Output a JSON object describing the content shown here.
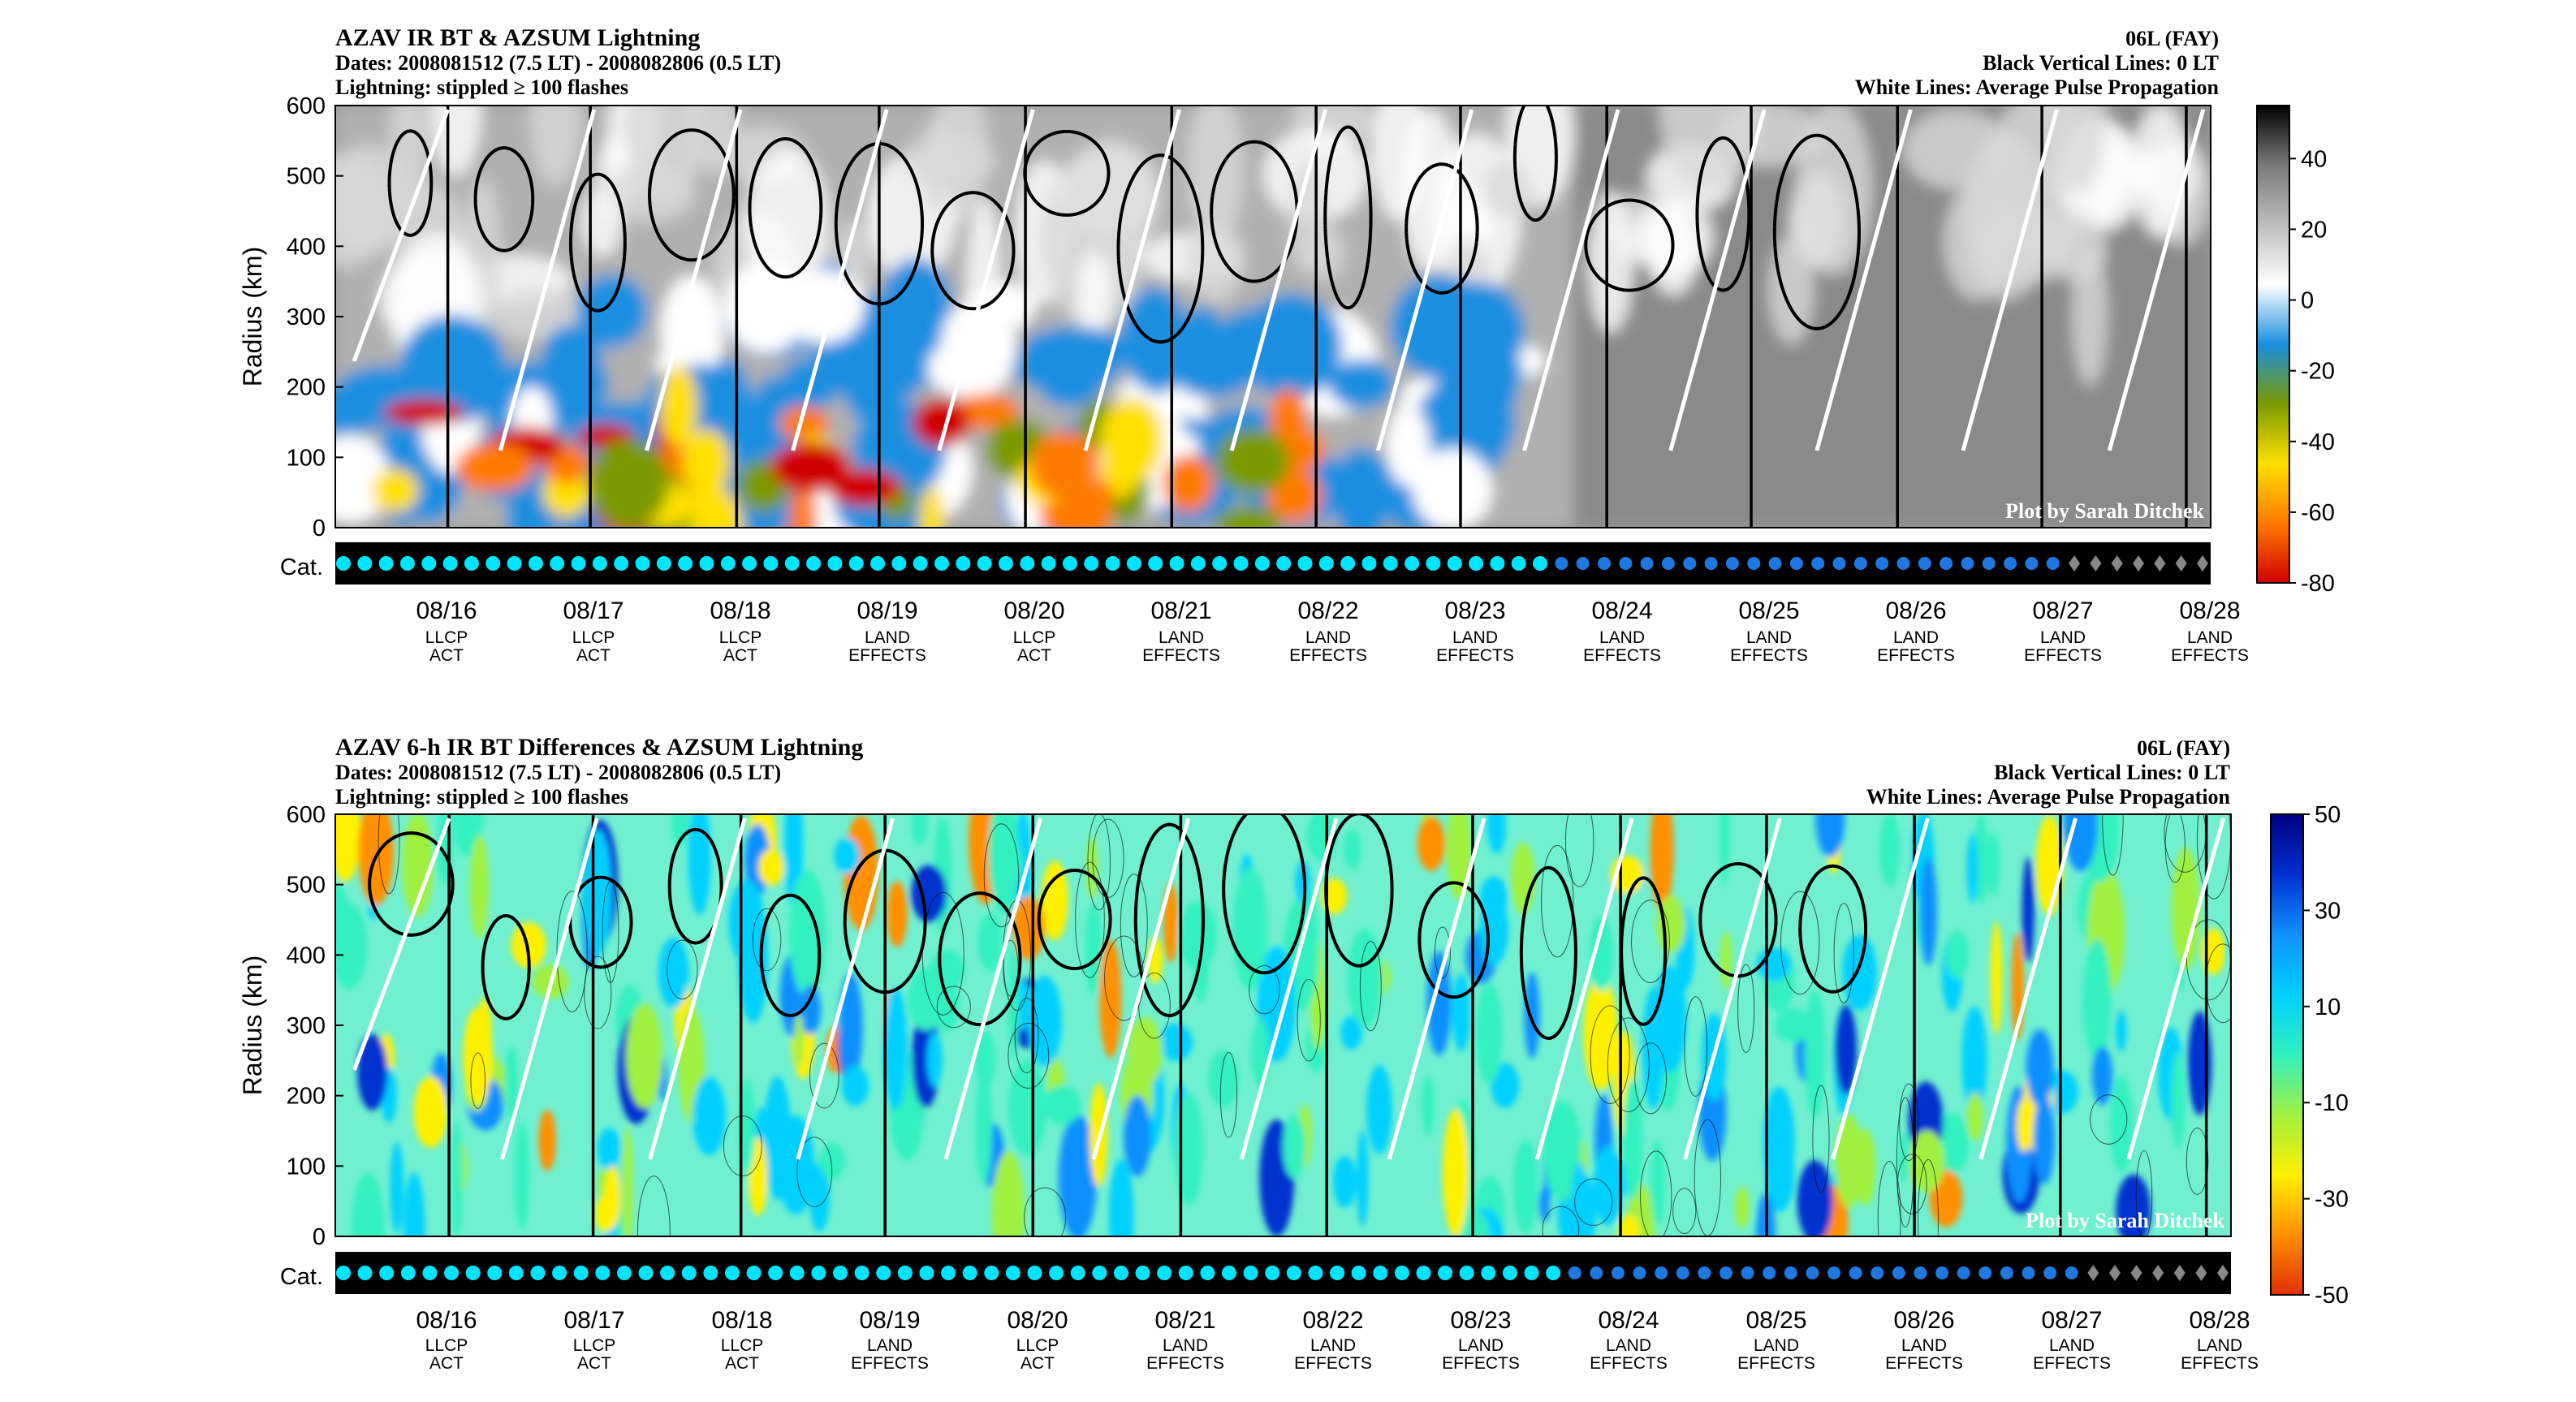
{
  "chart_data": [
    {
      "type": "heatmap",
      "title": "AZAV IR BT & AZSUM Lightning",
      "subtitle_lines": [
        "Dates: 2008081512 (7.5 LT) - 2008082806 (0.5 LT)",
        "Lightning: stippled ≥ 100 flashes"
      ],
      "storm": "06L (FAY)",
      "annotations": [
        "Black Vertical Lines: 0 LT",
        "White Lines: Average Pulse Propagation"
      ],
      "ylabel": "Radius (km)",
      "ylim": [
        0,
        600
      ],
      "yticks": [
        "0",
        "100",
        "200",
        "300",
        "400",
        "500",
        "600"
      ],
      "category_label": "Cat.",
      "credit": "Plot by Sarah Ditchek",
      "dates": [
        "08/16",
        "08/17",
        "08/18",
        "08/19",
        "08/20",
        "08/21",
        "08/22",
        "08/23",
        "08/24",
        "08/25",
        "08/26",
        "08/27",
        "08/28"
      ],
      "events": [
        [
          "LLCP",
          "ACT"
        ],
        [
          "LLCP",
          "ACT"
        ],
        [
          "LLCP",
          "ACT"
        ],
        [
          "LAND",
          "EFFECTS"
        ],
        [
          "LLCP",
          "ACT"
        ],
        [
          "LAND",
          "EFFECTS"
        ],
        [
          "LAND",
          "EFFECTS"
        ],
        [
          "LAND",
          "EFFECTS"
        ],
        [
          "LAND",
          "EFFECTS"
        ],
        [
          "LAND",
          "EFFECTS"
        ],
        [
          "LAND",
          "EFFECTS"
        ],
        [
          "LAND",
          "EFFECTS"
        ],
        [
          "LAND",
          "EFFECTS"
        ]
      ],
      "colorbar_ticks": [
        "40",
        "20",
        "0",
        "-20",
        "-40",
        "-60",
        "-80"
      ],
      "colorbar_range": [
        -80,
        55
      ],
      "grid": false
    },
    {
      "type": "heatmap",
      "title": "AZAV 6-h IR BT Differences & AZSUM Lightning",
      "subtitle_lines": [
        "Dates: 2008081512 (7.5 LT) - 2008082806 (0.5 LT)",
        "Lightning: stippled ≥ 100 flashes"
      ],
      "storm": "06L (FAY)",
      "annotations": [
        "Black Vertical Lines: 0 LT",
        "White Lines: Average Pulse Propagation"
      ],
      "ylabel": "Radius (km)",
      "ylim": [
        0,
        600
      ],
      "yticks": [
        "0",
        "100",
        "200",
        "300",
        "400",
        "500",
        "600"
      ],
      "category_label": "Cat.",
      "credit": "Plot by Sarah Ditchek",
      "dates": [
        "08/16",
        "08/17",
        "08/18",
        "08/19",
        "08/20",
        "08/21",
        "08/22",
        "08/23",
        "08/24",
        "08/25",
        "08/26",
        "08/27",
        "08/28"
      ],
      "events": [
        [
          "LLCP",
          "ACT"
        ],
        [
          "LLCP",
          "ACT"
        ],
        [
          "LLCP",
          "ACT"
        ],
        [
          "LAND",
          "EFFECTS"
        ],
        [
          "LLCP",
          "ACT"
        ],
        [
          "LAND",
          "EFFECTS"
        ],
        [
          "LAND",
          "EFFECTS"
        ],
        [
          "LAND",
          "EFFECTS"
        ],
        [
          "LAND",
          "EFFECTS"
        ],
        [
          "LAND",
          "EFFECTS"
        ],
        [
          "LAND",
          "EFFECTS"
        ],
        [
          "LAND",
          "EFFECTS"
        ],
        [
          "LAND",
          "EFFECTS"
        ]
      ],
      "colorbar_ticks": [
        "50",
        "30",
        "10",
        "-10",
        "-30",
        "-50"
      ],
      "colorbar_range": [
        -50,
        50
      ],
      "grid": false
    }
  ],
  "colors": {
    "frame": "#000000",
    "pulse_lines": "#ffffff",
    "cat_ts": "#00e5ff",
    "cat_td": "#1f77e0",
    "cat_ex": "#888888",
    "bt_scale": [
      "#d10000",
      "#ff7a00",
      "#ffe000",
      "#7a9a00",
      "#1a8fe0",
      "#ffffff",
      "#bdbdbd",
      "#7a7a7a",
      "#000000"
    ],
    "diff_scale": [
      "#e03000",
      "#ff9000",
      "#fff000",
      "#a0f040",
      "#30f0c0",
      "#00d0ff",
      "#1090ff",
      "#0030d0",
      "#000080"
    ]
  }
}
